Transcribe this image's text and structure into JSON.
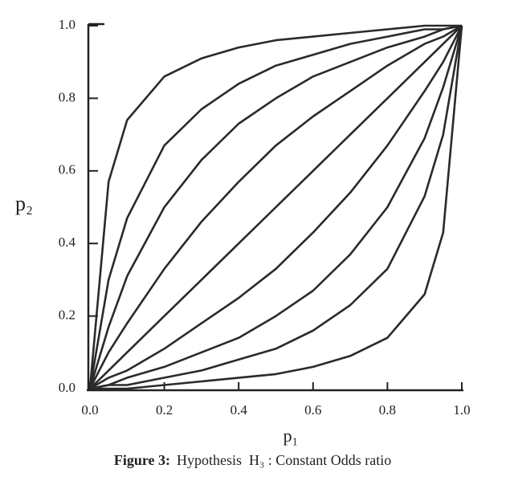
{
  "chart_data": {
    "type": "line",
    "x_label": "p₁",
    "y_label": "p₂",
    "caption_label": "Figure 3:",
    "caption": "Hypothesis  H₃ : Constant Odds ratio",
    "color": "#2a2a2a",
    "x": [
      0,
      0.05,
      0.1,
      0.2,
      0.3,
      0.4,
      0.5,
      0.6,
      0.7,
      0.8,
      0.9,
      0.95,
      1
    ],
    "series": [
      {
        "values": [
          0,
          0.57,
          0.74,
          0.86,
          0.91,
          0.94,
          0.96,
          0.97,
          0.98,
          0.99,
          1,
          1,
          1
        ]
      },
      {
        "values": [
          0,
          0.3,
          0.47,
          0.67,
          0.77,
          0.84,
          0.89,
          0.92,
          0.95,
          0.97,
          0.99,
          0.99,
          1
        ]
      },
      {
        "values": [
          0,
          0.17,
          0.31,
          0.5,
          0.63,
          0.73,
          0.8,
          0.86,
          0.9,
          0.94,
          0.97,
          0.99,
          1
        ]
      },
      {
        "values": [
          0,
          0.1,
          0.18,
          0.33,
          0.46,
          0.57,
          0.67,
          0.75,
          0.82,
          0.89,
          0.95,
          0.97,
          1
        ]
      },
      {
        "values": [
          0,
          0.05,
          0.1,
          0.2,
          0.3,
          0.4,
          0.5,
          0.6,
          0.7,
          0.8,
          0.9,
          0.95,
          1
        ]
      },
      {
        "values": [
          0,
          0.03,
          0.05,
          0.11,
          0.18,
          0.25,
          0.33,
          0.43,
          0.54,
          0.67,
          0.82,
          0.9,
          1
        ]
      },
      {
        "values": [
          0,
          0.01,
          0.03,
          0.06,
          0.1,
          0.14,
          0.2,
          0.27,
          0.37,
          0.5,
          0.69,
          0.83,
          1
        ]
      },
      {
        "values": [
          0,
          0.01,
          0.01,
          0.03,
          0.05,
          0.08,
          0.11,
          0.16,
          0.23,
          0.33,
          0.53,
          0.7,
          1
        ]
      },
      {
        "values": [
          0,
          0,
          0,
          0.01,
          0.02,
          0.03,
          0.04,
          0.06,
          0.09,
          0.14,
          0.26,
          0.43,
          1
        ]
      }
    ],
    "xlim": [
      0,
      1
    ],
    "ylim": [
      0,
      1
    ],
    "xticks": [
      {
        "value": 0,
        "label": "0.0"
      },
      0.2,
      0.4,
      0.6,
      0.8,
      {
        "value": 1,
        "label": "1.0"
      }
    ],
    "yticks": [
      {
        "value": 0,
        "label": "0.0"
      },
      0.2,
      0.4,
      0.6,
      0.8,
      {
        "value": 1,
        "label": "1.0"
      }
    ]
  }
}
